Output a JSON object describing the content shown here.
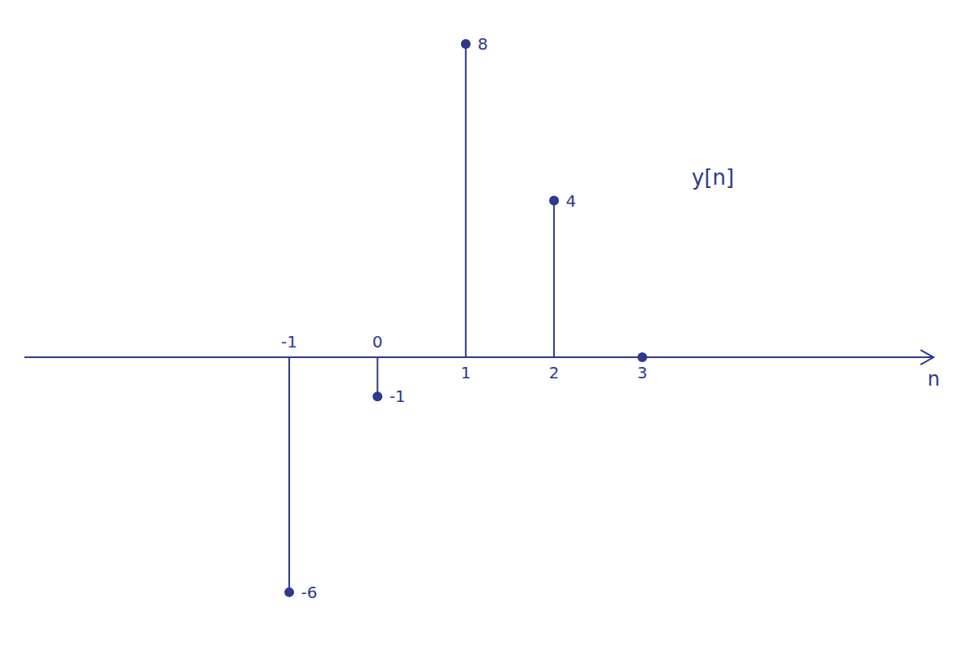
{
  "chart_data": {
    "type": "stem",
    "x_label": "n",
    "x": [
      -1,
      0,
      1,
      2,
      3
    ],
    "values": [
      -6,
      -1,
      8,
      4,
      0
    ],
    "value_labels": [
      "-6",
      "-1",
      "8",
      "4",
      null
    ],
    "xlim": [
      -4,
      6.3
    ],
    "xticks": [
      -1,
      0,
      1,
      2,
      3
    ],
    "ylim": [
      -7,
      8.5
    ],
    "yticks": [],
    "tick_labels": "x",
    "color": "#2b3a8c",
    "annotations": [
      {
        "text": "y[n]",
        "x": 3.8,
        "y": 4.6
      }
    ]
  }
}
